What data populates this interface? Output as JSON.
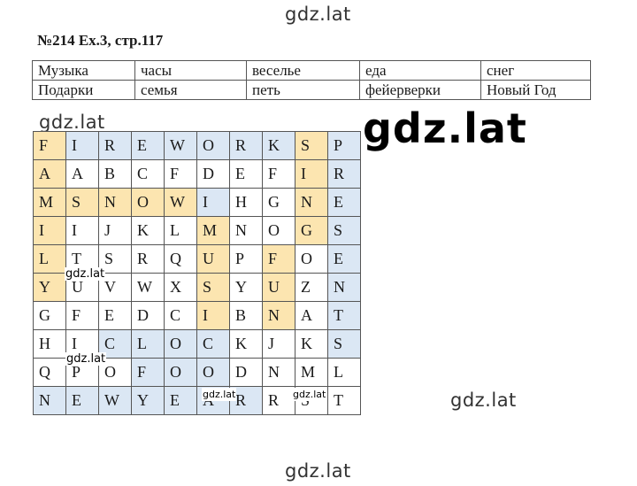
{
  "watermarks": [
    "gdz.lat",
    "gdz.lat",
    "gdz.lat",
    "gdz.lat",
    "gdz.lat",
    "gdz.lat",
    "gdz.lat",
    "gdz.lat"
  ],
  "heading": "№214 Ex.3, стр.117",
  "words_table": [
    [
      "Музыка",
      "часы",
      "веселье",
      "еда",
      "снег"
    ],
    [
      "Подарки",
      "семья",
      "петь",
      "фейерверки",
      "Новый Год"
    ]
  ],
  "grid": [
    [
      "F",
      "I",
      "R",
      "E",
      "W",
      "O",
      "R",
      "K",
      "S",
      "P"
    ],
    [
      "A",
      "A",
      "B",
      "C",
      "F",
      "D",
      "E",
      "F",
      "I",
      "R"
    ],
    [
      "M",
      "S",
      "N",
      "O",
      "W",
      "I",
      "H",
      "G",
      "N",
      "E"
    ],
    [
      "I",
      "I",
      "J",
      "K",
      "L",
      "M",
      "N",
      "O",
      "G",
      "S"
    ],
    [
      "L",
      "T",
      "S",
      "R",
      "Q",
      "U",
      "P",
      "F",
      "O",
      "E"
    ],
    [
      "Y",
      "U",
      "V",
      "W",
      "X",
      "S",
      "Y",
      "U",
      "Z",
      "N"
    ],
    [
      "G",
      "F",
      "E",
      "D",
      "C",
      "I",
      "B",
      "N",
      "A",
      "T"
    ],
    [
      "H",
      "I",
      "C",
      "L",
      "O",
      "C",
      "K",
      "J",
      "K",
      "S"
    ],
    [
      "Q",
      "P",
      "O",
      "F",
      "O",
      "O",
      "D",
      "N",
      "M",
      "L"
    ],
    [
      "N",
      "E",
      "W",
      "Y",
      "E",
      "A",
      "R",
      "R",
      "S",
      "T"
    ]
  ],
  "highlight": [
    [
      "y",
      "b",
      "b",
      "b",
      "b",
      "b",
      "b",
      "b",
      "y",
      "b"
    ],
    [
      "y",
      "",
      "",
      "",
      "",
      "",
      "",
      "",
      "y",
      "b"
    ],
    [
      "y",
      "y",
      "y",
      "y",
      "y",
      "b",
      "",
      "",
      "y",
      "b"
    ],
    [
      "y",
      "",
      "",
      "",
      "",
      "y",
      "",
      "",
      "y",
      "b"
    ],
    [
      "y",
      "",
      "",
      "",
      "",
      "y",
      "",
      "y",
      "",
      "b"
    ],
    [
      "y",
      "",
      "",
      "",
      "",
      "y",
      "",
      "y",
      "",
      "b"
    ],
    [
      "",
      "",
      "",
      "",
      "",
      "y",
      "",
      "y",
      "",
      "b"
    ],
    [
      "",
      "",
      "b",
      "b",
      "b",
      "b",
      "",
      "",
      "",
      "b"
    ],
    [
      "",
      "",
      "",
      "b",
      "b",
      "b",
      "",
      "",
      "",
      ""
    ],
    [
      "b",
      "b",
      "b",
      "b",
      "b",
      "b",
      "b",
      "",
      "",
      ""
    ]
  ]
}
